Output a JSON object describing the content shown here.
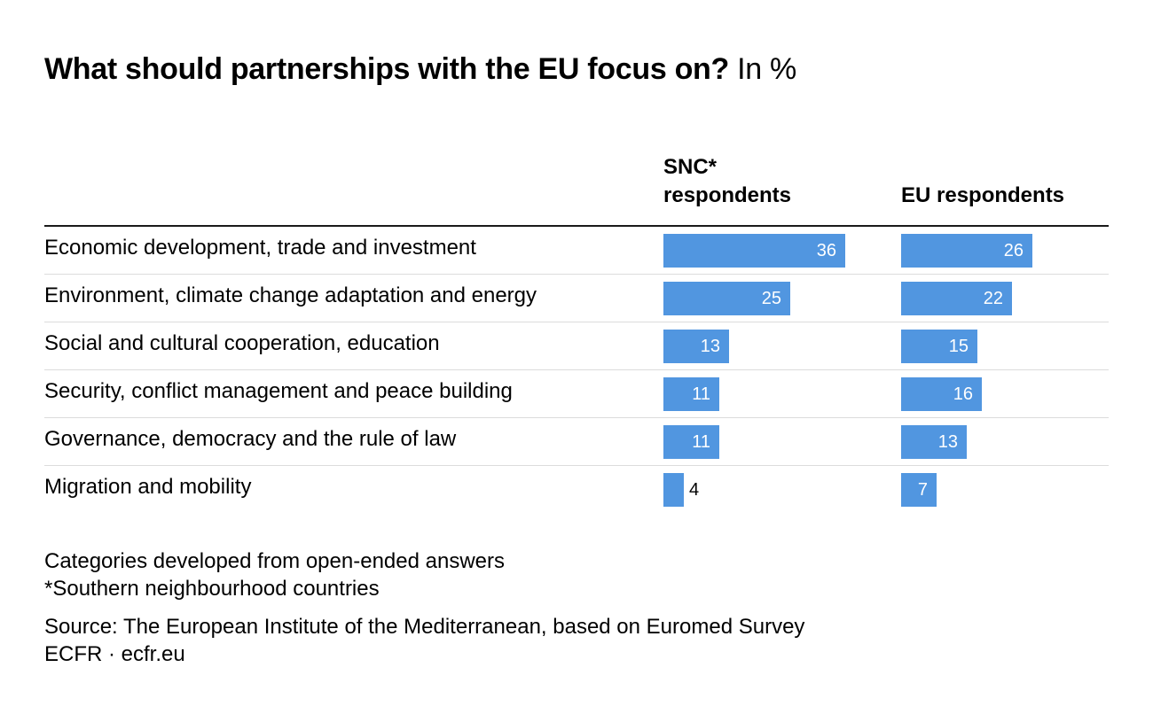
{
  "title": {
    "main": "What should partnerships with the EU focus on?",
    "unit": "In %"
  },
  "chart_data": {
    "type": "bar",
    "orientation": "horizontal",
    "title": "What should partnerships with the EU focus on?",
    "categories": [
      "Economic development, trade and investment",
      "Environment, climate change adaptation and energy",
      "Social and cultural cooperation, education",
      "Security, conflict management and peace building",
      "Governance, democracy and the rule of law",
      "Migration and mobility"
    ],
    "series": [
      {
        "name": "SNC* respondents",
        "values": [
          36,
          25,
          13,
          11,
          11,
          4
        ]
      },
      {
        "name": "EU respondents",
        "values": [
          26,
          22,
          15,
          16,
          13,
          7
        ]
      }
    ],
    "unit": "%",
    "bar_color": "#5196e0",
    "grid": false,
    "legend": "column headers"
  },
  "notes": {
    "line1": "Categories developed from open-ended answers",
    "line2": "*Southern neighbourhood countries",
    "source": "Source: The European Institute of the Mediterranean, based on Euromed Survey",
    "credit": "ECFR · ecfr.eu"
  }
}
